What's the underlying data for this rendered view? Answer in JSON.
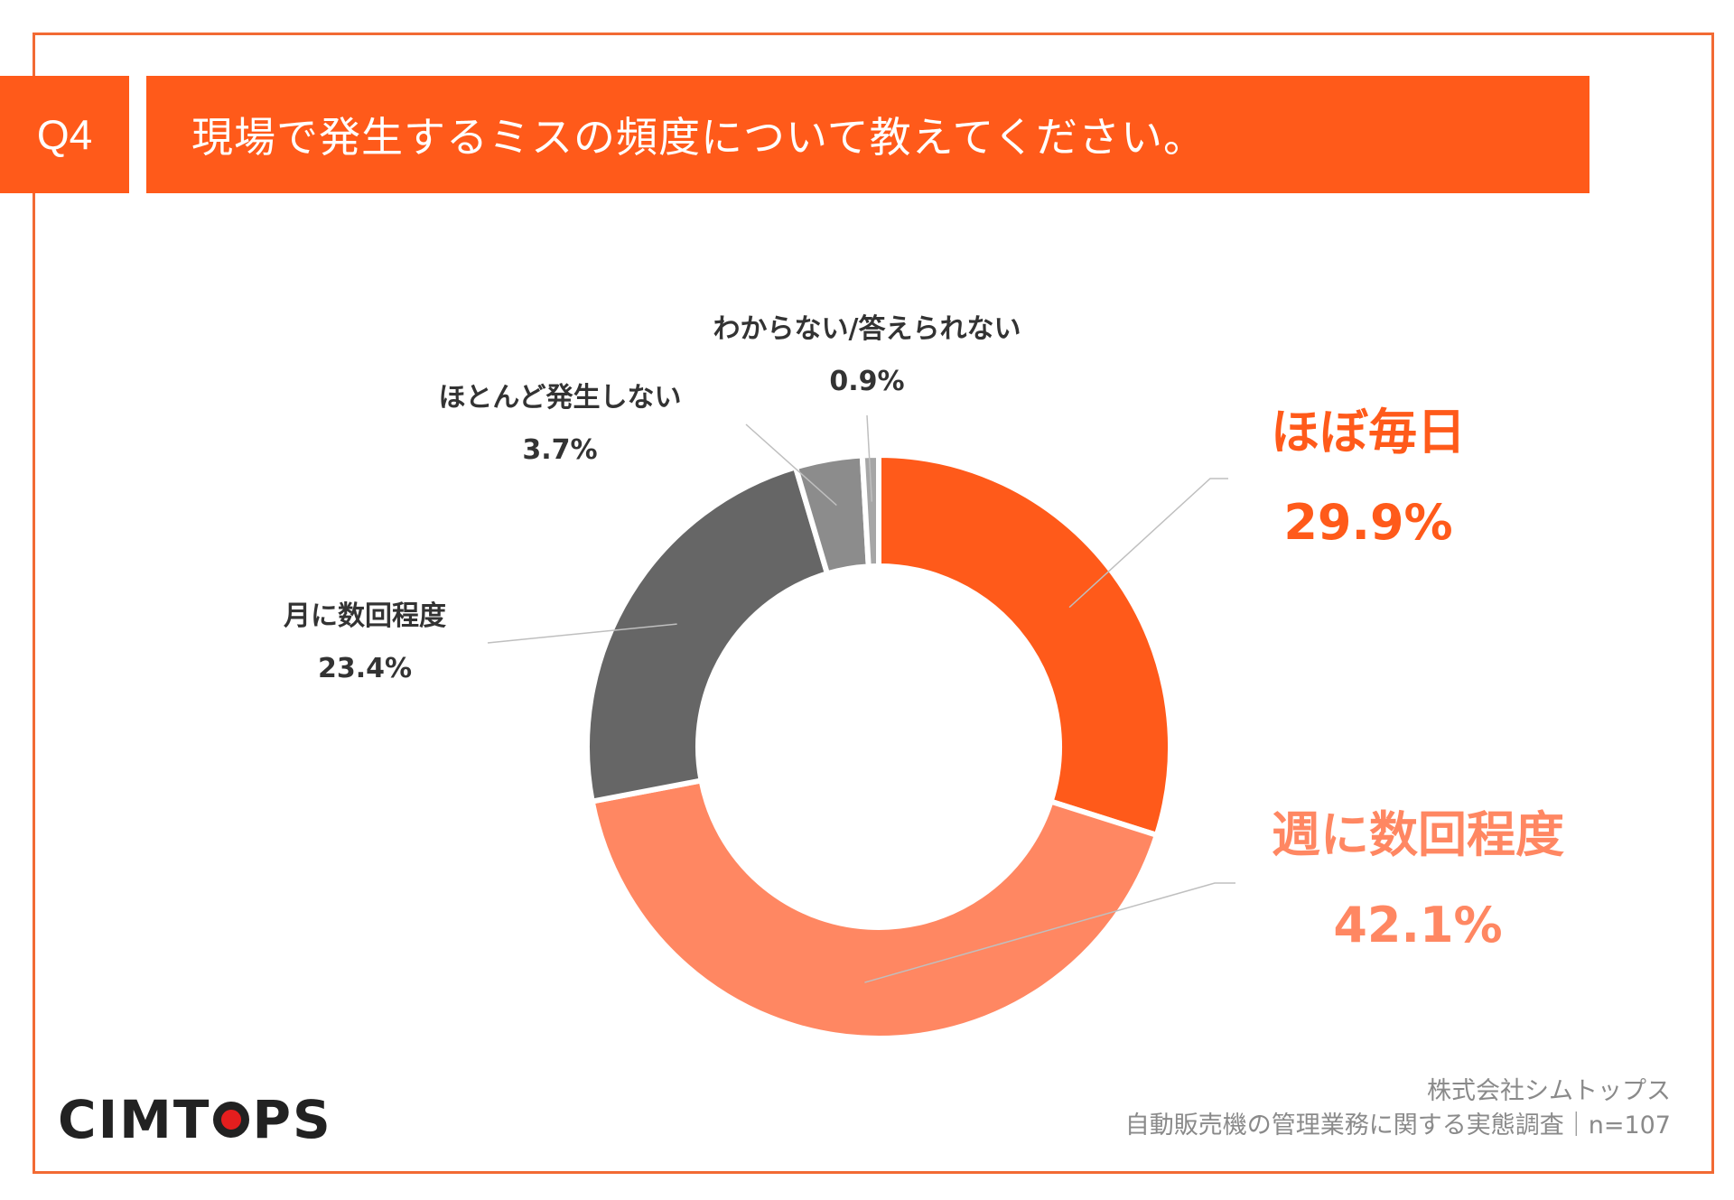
{
  "header": {
    "question_no": "Q4",
    "title": "現場で発生するミスの頻度について教えてください。"
  },
  "colors": {
    "accent": "#ff5a1a",
    "border": "#f26a34",
    "daily": "#ff5a1a",
    "weekly": "#ff8762",
    "monthly": "#666666",
    "rarely": "#8c8c8c",
    "unknown": "#a6a6a6",
    "small_label": "#333333",
    "leader": "#bfbfbf"
  },
  "chart_data": {
    "type": "pie",
    "variant": "donut",
    "title": "現場で発生するミスの頻度について教えてください。",
    "categories": [
      "ほぼ毎日",
      "週に数回程度",
      "月に数回程度",
      "ほとんど発生しない",
      "わからない/答えられない"
    ],
    "values": [
      29.9,
      42.1,
      23.4,
      3.7,
      0.9
    ],
    "value_labels": [
      "29.9%",
      "42.1%",
      "23.4%",
      "3.7%",
      "0.9%"
    ],
    "unit": "%",
    "legend": "none (direct labels)"
  },
  "labels": {
    "unknown": {
      "cat": "わからない/答えられない",
      "pct": "0.9%"
    },
    "rarely": {
      "cat": "ほとんど発生しない",
      "pct": "3.7%"
    },
    "monthly": {
      "cat": "月に数回程度",
      "pct": "23.4%"
    },
    "daily": {
      "cat": "ほぼ毎日",
      "pct": "29.9%"
    },
    "weekly": {
      "cat": "週に数回程度",
      "pct": "42.1%"
    }
  },
  "footer": {
    "logo_text_1": "CIMT",
    "logo_text_2": "PS",
    "company": "株式会社シムトップス",
    "survey": "自動販売機の管理業務に関する実態調査｜n=107"
  }
}
